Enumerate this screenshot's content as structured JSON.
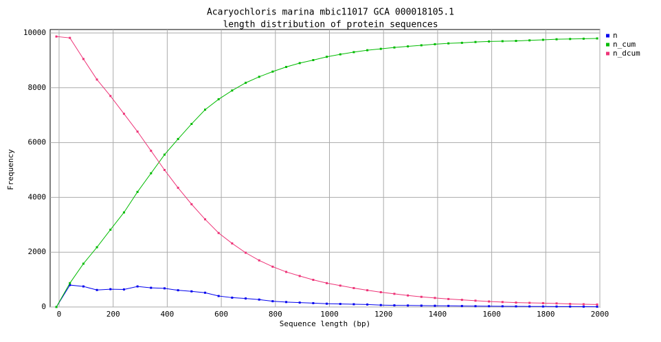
{
  "chart_data": {
    "type": "line",
    "title": "Acaryochloris marina mbic11017 GCA 000018105.1",
    "subtitle": "length distribution of protein sequences",
    "x_label": "Sequence length (bp)",
    "y_label": "Frequency",
    "x": [
      -10,
      40,
      90,
      140,
      190,
      240,
      290,
      340,
      390,
      440,
      490,
      540,
      590,
      640,
      690,
      740,
      790,
      840,
      890,
      940,
      990,
      1040,
      1090,
      1140,
      1190,
      1240,
      1290,
      1340,
      1390,
      1440,
      1490,
      1540,
      1590,
      1640,
      1690,
      1740,
      1790,
      1840,
      1890,
      1940,
      1990
    ],
    "series": [
      {
        "name": "n",
        "color": "#0000ee",
        "values": [
          0,
          800,
          750,
          620,
          650,
          640,
          750,
          700,
          680,
          610,
          570,
          520,
          400,
          340,
          310,
          270,
          210,
          180,
          160,
          140,
          120,
          110,
          100,
          90,
          70,
          60,
          55,
          50,
          45,
          40,
          35,
          30,
          28,
          25,
          22,
          20,
          18,
          16,
          15,
          12,
          10
        ]
      },
      {
        "name": "n_cum",
        "color": "#00bb00",
        "values": [
          0,
          870,
          1580,
          2180,
          2820,
          3450,
          4200,
          4880,
          5560,
          6130,
          6680,
          7200,
          7580,
          7900,
          8180,
          8400,
          8590,
          8760,
          8900,
          9010,
          9130,
          9220,
          9300,
          9370,
          9420,
          9470,
          9510,
          9550,
          9590,
          9620,
          9640,
          9670,
          9690,
          9700,
          9710,
          9730,
          9750,
          9770,
          9780,
          9790,
          9800
        ]
      },
      {
        "name": "n_dcum",
        "color": "#ee3377",
        "values": [
          9870,
          9820,
          9050,
          8300,
          7700,
          7050,
          6400,
          5700,
          5000,
          4350,
          3750,
          3200,
          2700,
          2320,
          1980,
          1700,
          1470,
          1280,
          1130,
          990,
          870,
          780,
          690,
          610,
          540,
          480,
          420,
          370,
          330,
          290,
          260,
          230,
          200,
          180,
          160,
          150,
          140,
          130,
          110,
          100,
          90
        ]
      }
    ],
    "xlim": [
      -33,
      2000
    ],
    "xticks": [
      0,
      200,
      400,
      600,
      800,
      1000,
      1200,
      1400,
      1600,
      1800,
      2000
    ],
    "ylim": [
      0,
      10000
    ],
    "yticks": [
      0,
      2000,
      4000,
      6000,
      8000,
      10000
    ],
    "grid": true,
    "legend": "top-right"
  }
}
